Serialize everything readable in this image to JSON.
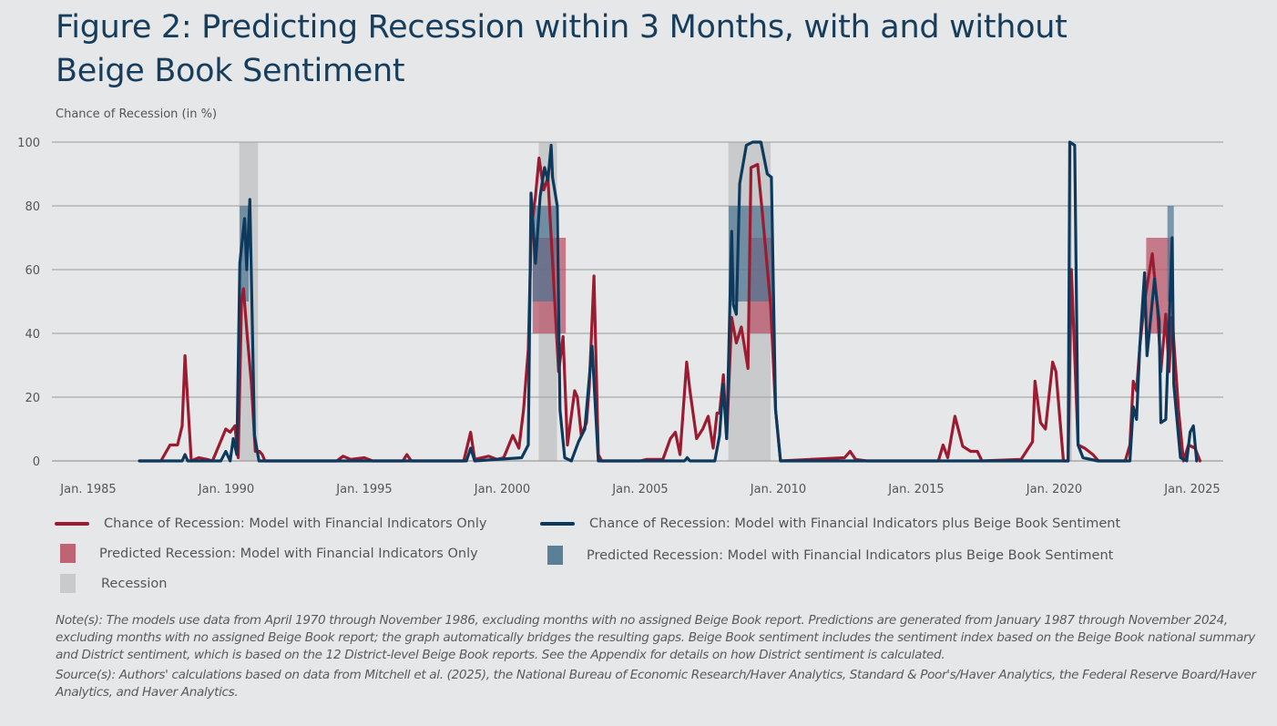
{
  "header": {
    "title": "Figure 2: Predicting Recession within 3 Months, with and without Beige Book Sentiment"
  },
  "chart_data": {
    "type": "line",
    "title": "Figure 2: Predicting Recession within 3 Months, with and without Beige Book Sentiment",
    "ylabel": "Chance of Recession (in %)",
    "xlabel": "",
    "ylim": [
      0,
      100
    ],
    "xlim": [
      1985,
      2025
    ],
    "grid": true,
    "yticks": [
      0,
      20,
      40,
      60,
      80,
      100
    ],
    "xticks": [
      {
        "value": 1985,
        "label": "Jan. 1985"
      },
      {
        "value": 1990,
        "label": "Jan. 1990"
      },
      {
        "value": 1995,
        "label": "Jan. 1995"
      },
      {
        "value": 2000,
        "label": "Jan. 2000"
      },
      {
        "value": 2005,
        "label": "Jan. 2005"
      },
      {
        "value": 2010,
        "label": "Jan. 2010"
      },
      {
        "value": 2015,
        "label": "Jan. 2015"
      },
      {
        "value": 2020,
        "label": "Jan. 2020"
      },
      {
        "value": 2025,
        "label": "Jan. 2025"
      }
    ],
    "legend_placement": "bottom",
    "series": [
      {
        "name": "Chance of Recession: Model with Financial Indicators Only",
        "color": "#9b1b30",
        "points": [
          [
            1986.85,
            0
          ],
          [
            1987.63,
            0
          ],
          [
            1987.96,
            5
          ],
          [
            1988.23,
            5
          ],
          [
            1988.4,
            11
          ],
          [
            1988.5,
            33
          ],
          [
            1988.73,
            0
          ],
          [
            1989.0,
            1
          ],
          [
            1989.3,
            0.5
          ],
          [
            1989.5,
            0
          ],
          [
            1989.98,
            10
          ],
          [
            1990.14,
            9
          ],
          [
            1990.31,
            11
          ],
          [
            1990.43,
            1
          ],
          [
            1990.55,
            50
          ],
          [
            1990.62,
            54
          ],
          [
            1990.75,
            40
          ],
          [
            1990.9,
            25
          ],
          [
            1991.05,
            3
          ],
          [
            1991.2,
            3
          ],
          [
            1991.3,
            2
          ],
          [
            1991.4,
            0
          ],
          [
            1994.0,
            0
          ],
          [
            1994.23,
            1.5
          ],
          [
            1994.5,
            0.5
          ],
          [
            1995.0,
            1
          ],
          [
            1995.3,
            0
          ],
          [
            1996.4,
            0
          ],
          [
            1996.54,
            2
          ],
          [
            1996.7,
            0
          ],
          [
            1998.6,
            0
          ],
          [
            1998.85,
            9
          ],
          [
            1999.0,
            0.5
          ],
          [
            1999.5,
            1.5
          ],
          [
            1999.8,
            0.5
          ],
          [
            2000.05,
            1
          ],
          [
            2000.38,
            8
          ],
          [
            2000.6,
            4
          ],
          [
            2000.77,
            16
          ],
          [
            2000.94,
            35
          ],
          [
            2001.05,
            73
          ],
          [
            2001.2,
            83
          ],
          [
            2001.33,
            95
          ],
          [
            2001.5,
            85
          ],
          [
            2001.65,
            89
          ],
          [
            2001.93,
            45
          ],
          [
            2002.04,
            28
          ],
          [
            2002.2,
            39
          ],
          [
            2002.36,
            5
          ],
          [
            2002.62,
            22
          ],
          [
            2002.72,
            20
          ],
          [
            2002.86,
            8
          ],
          [
            2003.05,
            12
          ],
          [
            2003.15,
            23
          ],
          [
            2003.32,
            58
          ],
          [
            2003.48,
            2
          ],
          [
            2003.6,
            0
          ],
          [
            2005.0,
            0
          ],
          [
            2005.23,
            0.5
          ],
          [
            2005.82,
            0.5
          ],
          [
            2006.09,
            7
          ],
          [
            2006.27,
            9
          ],
          [
            2006.44,
            2
          ],
          [
            2006.68,
            31
          ],
          [
            2006.8,
            22
          ],
          [
            2007.04,
            7
          ],
          [
            2007.26,
            10
          ],
          [
            2007.46,
            14
          ],
          [
            2007.64,
            4
          ],
          [
            2007.78,
            15
          ],
          [
            2007.87,
            15
          ],
          [
            2008.01,
            27
          ],
          [
            2008.13,
            7
          ],
          [
            2008.31,
            45
          ],
          [
            2008.48,
            37
          ],
          [
            2008.66,
            42
          ],
          [
            2008.9,
            29
          ],
          [
            2009.01,
            92
          ],
          [
            2009.25,
            93
          ],
          [
            2009.42,
            78
          ],
          [
            2009.72,
            49
          ],
          [
            2009.9,
            16
          ],
          [
            2010.08,
            0
          ],
          [
            2012.4,
            1
          ],
          [
            2012.6,
            3
          ],
          [
            2012.8,
            0.5
          ],
          [
            2013.2,
            0
          ],
          [
            2015.8,
            0
          ],
          [
            2015.97,
            5
          ],
          [
            2016.14,
            1
          ],
          [
            2016.4,
            14
          ],
          [
            2016.68,
            4.6
          ],
          [
            2016.97,
            3
          ],
          [
            2017.21,
            3
          ],
          [
            2017.38,
            0
          ],
          [
            2018.8,
            0.5
          ],
          [
            2019.21,
            6
          ],
          [
            2019.3,
            25
          ],
          [
            2019.5,
            12
          ],
          [
            2019.68,
            10
          ],
          [
            2019.94,
            31
          ],
          [
            2020.06,
            28
          ],
          [
            2020.33,
            0
          ],
          [
            2020.5,
            0
          ],
          [
            2020.62,
            60
          ],
          [
            2020.86,
            5
          ],
          [
            2021.1,
            4
          ],
          [
            2021.4,
            2
          ],
          [
            2021.6,
            0
          ],
          [
            2022.57,
            0
          ],
          [
            2022.74,
            5
          ],
          [
            2022.86,
            25
          ],
          [
            2022.98,
            22
          ],
          [
            2023.1,
            36
          ],
          [
            2023.27,
            50
          ],
          [
            2023.55,
            65
          ],
          [
            2023.74,
            48
          ],
          [
            2023.86,
            28
          ],
          [
            2024.04,
            46
          ],
          [
            2024.16,
            28
          ],
          [
            2024.27,
            45
          ],
          [
            2024.5,
            16
          ],
          [
            2024.68,
            0
          ],
          [
            2024.86,
            5
          ],
          [
            2025.1,
            4
          ],
          [
            2025.28,
            0
          ]
        ]
      },
      {
        "name": "Chance of Recession: Model with Financial Indicators plus Beige Book Sentiment",
        "color": "#0d3a5c",
        "points": [
          [
            1986.85,
            0
          ],
          [
            1988.4,
            0
          ],
          [
            1988.5,
            2
          ],
          [
            1988.6,
            0
          ],
          [
            1989.8,
            0
          ],
          [
            1989.98,
            3
          ],
          [
            1990.14,
            0
          ],
          [
            1990.25,
            7
          ],
          [
            1990.38,
            2
          ],
          [
            1990.49,
            62
          ],
          [
            1990.66,
            76
          ],
          [
            1990.74,
            60
          ],
          [
            1990.85,
            82
          ],
          [
            1991.02,
            8
          ],
          [
            1991.18,
            0
          ],
          [
            1998.7,
            0
          ],
          [
            1998.85,
            4
          ],
          [
            1999.0,
            0
          ],
          [
            2000.7,
            1
          ],
          [
            2000.94,
            5
          ],
          [
            2001.04,
            84
          ],
          [
            2001.2,
            62
          ],
          [
            2001.37,
            83
          ],
          [
            2001.53,
            92
          ],
          [
            2001.65,
            88
          ],
          [
            2001.77,
            99
          ],
          [
            2001.82,
            89
          ],
          [
            2001.99,
            80
          ],
          [
            2002.09,
            16
          ],
          [
            2002.26,
            1
          ],
          [
            2002.5,
            0
          ],
          [
            2002.76,
            6
          ],
          [
            2002.99,
            10
          ],
          [
            2003.25,
            36
          ],
          [
            2003.48,
            0
          ],
          [
            2006.6,
            0
          ],
          [
            2006.7,
            1
          ],
          [
            2006.8,
            0
          ],
          [
            2007.7,
            0
          ],
          [
            2007.87,
            8
          ],
          [
            2008.0,
            24
          ],
          [
            2008.13,
            7
          ],
          [
            2008.31,
            72
          ],
          [
            2008.37,
            49
          ],
          [
            2008.48,
            46
          ],
          [
            2008.6,
            87
          ],
          [
            2008.84,
            99
          ],
          [
            2009.07,
            100
          ],
          [
            2009.37,
            100
          ],
          [
            2009.6,
            90
          ],
          [
            2009.75,
            89
          ],
          [
            2009.9,
            16
          ],
          [
            2010.08,
            0
          ],
          [
            2020.5,
            0
          ],
          [
            2020.56,
            100
          ],
          [
            2020.74,
            99
          ],
          [
            2020.86,
            5
          ],
          [
            2021.04,
            1
          ],
          [
            2021.57,
            0
          ],
          [
            2022.74,
            0
          ],
          [
            2022.86,
            17
          ],
          [
            2022.98,
            13
          ],
          [
            2023.1,
            36
          ],
          [
            2023.27,
            59
          ],
          [
            2023.36,
            33
          ],
          [
            2023.63,
            57
          ],
          [
            2023.8,
            44
          ],
          [
            2023.86,
            12
          ],
          [
            2024.04,
            13
          ],
          [
            2024.27,
            70
          ],
          [
            2024.33,
            24
          ],
          [
            2024.57,
            1
          ],
          [
            2024.8,
            0
          ],
          [
            2024.92,
            9
          ],
          [
            2025.04,
            11
          ],
          [
            2025.16,
            0
          ]
        ]
      }
    ],
    "recessions": {
      "name": "Recession",
      "color": "#c9cacc",
      "periods": [
        {
          "start": 1990.47,
          "end": 1991.15
        },
        {
          "start": 2001.32,
          "end": 2001.98
        },
        {
          "start": 2008.19,
          "end": 2009.72
        },
        {
          "start": 2020.5,
          "end": 2020.64
        }
      ]
    },
    "predicted_financial": {
      "name": "Predicted Recession: Model with Financial Indicators Only",
      "color": "#b9566a",
      "periods": [
        {
          "start": 2001.1,
          "end": 2002.3,
          "low": 40,
          "high": 70
        },
        {
          "start": 2008.97,
          "end": 2009.8,
          "low": 40,
          "high": 70
        },
        {
          "start": 2023.33,
          "end": 2024.27,
          "low": 40,
          "high": 70
        }
      ]
    },
    "predicted_beige": {
      "name": "Predicted Recession: Model with Financial Indicators plus Beige Book Sentiment",
      "color": "#4a7490",
      "periods": [
        {
          "start": 1990.48,
          "end": 1990.81,
          "low": 50,
          "high": 80
        },
        {
          "start": 2001.1,
          "end": 2001.93,
          "low": 50,
          "high": 80
        },
        {
          "start": 2008.2,
          "end": 2009.8,
          "low": 50,
          "high": 80
        },
        {
          "start": 2024.1,
          "end": 2024.33,
          "low": 50,
          "high": 80
        }
      ]
    }
  },
  "legend": {
    "red_line": "Chance of Recession: Model with Financial Indicators Only",
    "blue_line": "Chance of Recession: Model with Financial Indicators plus Beige Book Sentiment",
    "red_box": "Predicted Recession: Model with Financial Indicators Only",
    "blue_box": "Predicted Recession: Model with Financial Indicators plus Beige Book Sentiment",
    "recession": "Recession"
  },
  "notes": {
    "note": "Note(s): The models use data from April 1970 through November 1986, excluding months with no assigned Beige Book report. Predictions are generated from January 1987 through November 2024, excluding months with no assigned Beige Book report; the graph automatically bridges the resulting gaps. Beige Book sentiment includes the sentiment index based on the Beige Book national summary and District sentiment, which is based on the 12 District-level Beige Book reports. See the Appendix for details on how District sentiment is calculated.",
    "source": "Source(s): Authors' calculations based on data from Mitchell et al. (2025), the National Bureau of Economic Research/Haver Analytics, Standard & Poor's/Haver Analytics, the Federal Reserve Board/Haver Analytics, and Haver Analytics."
  }
}
